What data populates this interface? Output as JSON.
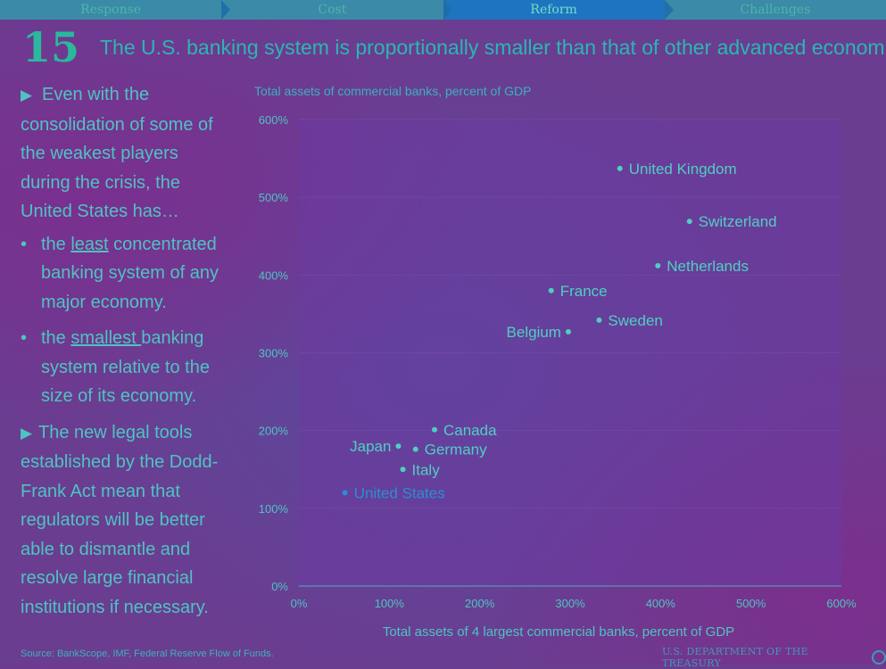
{
  "nav": {
    "tabs": [
      {
        "label": "Response",
        "active": false
      },
      {
        "label": "Cost",
        "active": false
      },
      {
        "label": "Reform",
        "active": true
      },
      {
        "label": "Challenges",
        "active": false
      }
    ]
  },
  "header": {
    "page_number": "15",
    "title": "The U.S. banking system is proportionally smaller than that of other advanced economies"
  },
  "left": {
    "para1": "Even with the consolidation of some of the weakest players during the crisis, the United States has…",
    "bullet1_pre": "the ",
    "bullet1_u": "least",
    "bullet1_post": " concentrated banking system of any major economy.",
    "bullet2_pre": "the ",
    "bullet2_u": "smallest ",
    "bullet2_post": "banking system relative to the size of its economy.",
    "para2": "The new legal tools established by the Dodd-Frank Act mean that regulators will be better able to dismantle and resolve large financial institutions if necessary."
  },
  "footer": {
    "source": "Source: BankScope, IMF, Federal Reserve Flow of Funds.",
    "agency": "U.S. DEPARTMENT OF THE TREASURY"
  },
  "colors": {
    "label": "#4fcfc0",
    "highlight": "#2a8fd0",
    "plot_bg": "#6b3aa0",
    "grid": "#7a4aa6"
  },
  "chart_data": {
    "type": "scatter",
    "title": "Total assets of commercial banks, percent of GDP",
    "xlabel": "Total assets of 4 largest commercial banks, percent of GDP",
    "ylabel": "",
    "xlim": [
      0,
      600
    ],
    "ylim": [
      0,
      600
    ],
    "x_ticks": [
      "0%",
      "100%",
      "200%",
      "300%",
      "400%",
      "500%",
      "600%"
    ],
    "y_ticks": [
      "0%",
      "100%",
      "200%",
      "300%",
      "400%",
      "500%",
      "600%"
    ],
    "points": [
      {
        "name": "United Kingdom",
        "x": 355,
        "y": 537,
        "label_side": "right"
      },
      {
        "name": "Switzerland",
        "x": 432,
        "y": 469,
        "label_side": "right"
      },
      {
        "name": "Netherlands",
        "x": 397,
        "y": 412,
        "label_side": "right"
      },
      {
        "name": "France",
        "x": 279,
        "y": 380,
        "label_side": "right"
      },
      {
        "name": "Sweden",
        "x": 332,
        "y": 342,
        "label_side": "right"
      },
      {
        "name": "Belgium",
        "x": 298,
        "y": 327,
        "label_side": "left"
      },
      {
        "name": "Canada",
        "x": 150,
        "y": 201,
        "label_side": "right"
      },
      {
        "name": "Japan",
        "x": 110,
        "y": 180,
        "label_side": "left"
      },
      {
        "name": "Germany",
        "x": 129,
        "y": 176,
        "label_side": "right"
      },
      {
        "name": "Italy",
        "x": 115,
        "y": 150,
        "label_side": "right"
      },
      {
        "name": "United States",
        "x": 51,
        "y": 120,
        "label_side": "right",
        "highlight": true
      }
    ]
  }
}
